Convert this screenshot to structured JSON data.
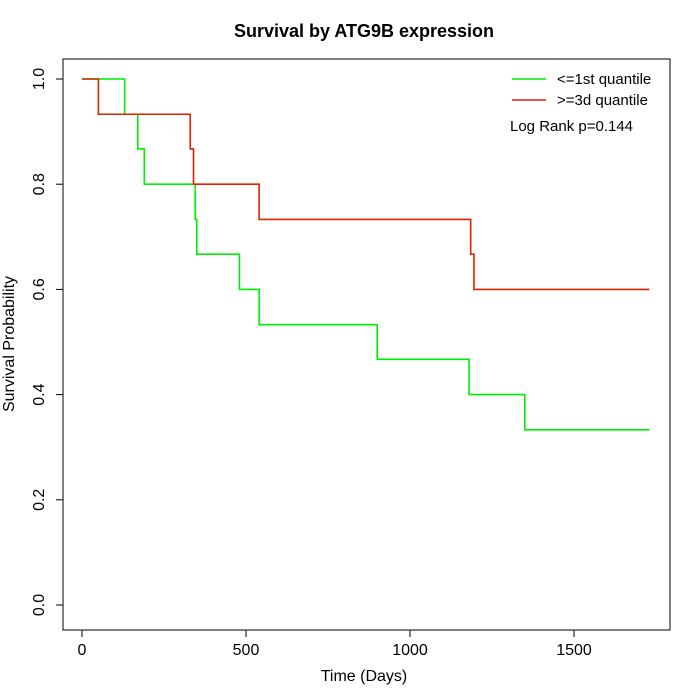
{
  "chart_data": {
    "type": "line",
    "title": "Survival by ATG9B expression",
    "xlabel": "Time (Days)",
    "ylabel": "Survival Probability",
    "xlim": [
      0,
      1730
    ],
    "ylim": [
      0,
      1
    ],
    "x_ticks": [
      0,
      500,
      1000,
      1500
    ],
    "x_tick_labels": [
      "0",
      "500",
      "1000",
      "1500"
    ],
    "y_ticks": [
      0,
      0.2,
      0.4,
      0.6,
      0.8,
      1.0
    ],
    "y_tick_labels": [
      "0.0",
      "0.2",
      "0.4",
      "0.6",
      "0.8",
      "1.0"
    ],
    "legend_position": "top-right",
    "annotation": "Log Rank p=0.144",
    "series": [
      {
        "name": "<=1st quantile",
        "color": "#00ee00",
        "steps": [
          [
            0,
            1.0
          ],
          [
            130,
            0.933
          ],
          [
            170,
            0.867
          ],
          [
            190,
            0.8
          ],
          [
            345,
            0.733
          ],
          [
            350,
            0.667
          ],
          [
            480,
            0.6
          ],
          [
            540,
            0.533
          ],
          [
            900,
            0.467
          ],
          [
            1180,
            0.4
          ],
          [
            1350,
            0.333
          ]
        ],
        "end_x": 1730
      },
      {
        "name": ">=3d quantile",
        "color": "#dd2200",
        "steps": [
          [
            0,
            1.0
          ],
          [
            50,
            0.933
          ],
          [
            330,
            0.867
          ],
          [
            340,
            0.8
          ],
          [
            540,
            0.733
          ],
          [
            1185,
            0.667
          ],
          [
            1195,
            0.6
          ]
        ],
        "end_x": 1730
      }
    ]
  }
}
